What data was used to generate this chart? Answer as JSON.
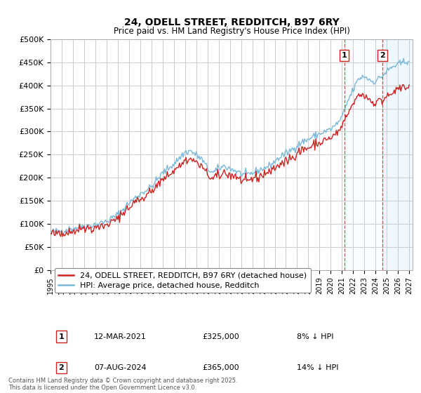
{
  "title": "24, ODELL STREET, REDDITCH, B97 6RY",
  "subtitle": "Price paid vs. HM Land Registry's House Price Index (HPI)",
  "hpi_color": "#7ab8d9",
  "price_color": "#cc2222",
  "vline_color": "#cc2222",
  "ylim": [
    0,
    500000
  ],
  "yticks": [
    0,
    50000,
    100000,
    150000,
    200000,
    250000,
    300000,
    350000,
    400000,
    450000,
    500000
  ],
  "ytick_labels": [
    "£0",
    "£50K",
    "£100K",
    "£150K",
    "£200K",
    "£250K",
    "£300K",
    "£350K",
    "£400K",
    "£450K",
    "£500K"
  ],
  "legend_label_price": "24, ODELL STREET, REDDITCH, B97 6RY (detached house)",
  "legend_label_hpi": "HPI: Average price, detached house, Redditch",
  "sale1_date": "12-MAR-2021",
  "sale1_price": 325000,
  "sale1_pct": "8% ↓ HPI",
  "sale1_year": 2021.2,
  "sale2_date": "07-AUG-2024",
  "sale2_price": 365000,
  "sale2_pct": "14% ↓ HPI",
  "sale2_year": 2024.6,
  "footnote": "Contains HM Land Registry data © Crown copyright and database right 2025.\nThis data is licensed under the Open Government Licence v3.0.",
  "bg_color": "#ffffff",
  "grid_color": "#cccccc",
  "shaded_color": "#ddeeff"
}
